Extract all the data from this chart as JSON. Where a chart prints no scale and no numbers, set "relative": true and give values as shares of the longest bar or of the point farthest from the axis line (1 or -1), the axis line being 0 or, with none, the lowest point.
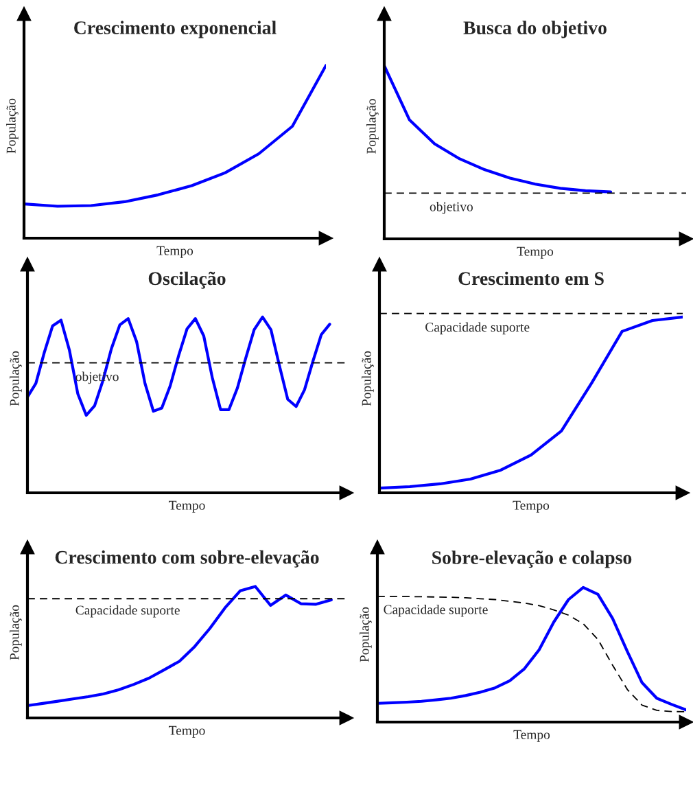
{
  "chart_data": [
    {
      "type": "line",
      "title": "Crescimento exponencial",
      "xlabel": "Tempo",
      "ylabel": "População",
      "relative": true,
      "categories": [
        null,
        null,
        null,
        null,
        null,
        null,
        null,
        null,
        null,
        null
      ],
      "series": [
        {
          "color": "#0000ff",
          "values": [
            0.198,
            0.185,
            0.189,
            0.211,
            0.251,
            0.304,
            0.379,
            0.489,
            0.648,
            1
          ]
        }
      ]
    },
    {
      "type": "line",
      "title": "Busca do objetivo",
      "xlabel": "Tempo",
      "ylabel": "População",
      "relative": true,
      "categories": [
        null,
        null,
        null,
        null,
        null,
        null,
        null,
        null,
        null,
        null,
        null,
        null,
        null
      ],
      "series": [
        {
          "color": "#0000ff",
          "values": [
            1,
            0.688,
            0.549,
            0.462,
            0.399,
            0.351,
            0.316,
            0.292,
            0.278,
            0.271,
            null,
            null,
            null
          ]
        }
      ],
      "ref_lines": [
        {
          "axis": "y",
          "value": 0.264,
          "label": "objetivo",
          "color": "#000000",
          "line_style": "dashed"
        }
      ]
    },
    {
      "type": "line",
      "title": "Oscilação",
      "xlabel": "Tempo",
      "ylabel": "População",
      "relative": true,
      "categories": [
        null,
        null,
        null,
        null,
        null,
        null,
        null,
        null,
        null,
        null,
        null,
        null,
        null,
        null,
        null,
        null,
        null,
        null,
        null,
        null,
        null,
        null,
        null,
        null,
        null,
        null,
        null,
        null,
        null,
        null,
        null,
        null,
        null,
        null,
        null,
        null,
        null,
        null,
        null
      ],
      "series": [
        {
          "color": "#0000ff",
          "values": [
            0.545,
            0.622,
            0.797,
            0.95,
            0.982,
            0.811,
            0.563,
            0.441,
            0.495,
            0.64,
            0.82,
            0.955,
            0.991,
            0.86,
            0.622,
            0.464,
            0.482,
            0.608,
            0.779,
            0.932,
            0.991,
            0.892,
            0.658,
            0.473,
            0.473,
            0.595,
            0.766,
            0.928,
            1,
            0.928,
            0.725,
            0.532,
            0.491,
            0.586,
            0.748,
            0.9,
            0.959,
            null,
            null
          ]
        }
      ],
      "ref_lines": [
        {
          "axis": "y",
          "value": 0.739,
          "label": "objetivo",
          "color": "#000000",
          "line_style": "dashed"
        }
      ]
    },
    {
      "type": "line",
      "title": "Crescimento em S",
      "xlabel": "Tempo",
      "ylabel": "População",
      "relative": true,
      "categories": [
        null,
        null,
        null,
        null,
        null,
        null,
        null,
        null,
        null,
        null,
        null
      ],
      "series": [
        {
          "color": "#0000ff",
          "values": [
            0.027,
            0.035,
            0.051,
            0.078,
            0.129,
            0.215,
            0.352,
            0.625,
            0.918,
            0.98,
            1
          ]
        }
      ],
      "ref_lines": [
        {
          "axis": "y",
          "value": 1.02,
          "label": "Capacidade suporte",
          "color": "#000000",
          "line_style": "dashed"
        }
      ]
    },
    {
      "type": "line",
      "title": "Crescimento com sobre-elevação",
      "xlabel": "Tempo",
      "ylabel": "População",
      "relative": true,
      "categories": [
        null,
        null,
        null,
        null,
        null,
        null,
        null,
        null,
        null,
        null,
        null,
        null,
        null,
        null,
        null,
        null,
        null,
        null,
        null,
        null,
        null,
        null
      ],
      "series": [
        {
          "color": "#0000ff",
          "values": [
            0.094,
            0.11,
            0.127,
            0.145,
            0.162,
            0.183,
            0.214,
            0.255,
            0.303,
            0.366,
            0.431,
            0.542,
            0.68,
            0.837,
            0.967,
            1,
            0.856,
            0.935,
            0.869,
            0.865,
            0.898,
            null
          ]
        }
      ],
      "ref_lines": [
        {
          "axis": "y",
          "value": 0.907,
          "label": "Capacidade suporte",
          "color": "#000000",
          "line_style": "dashed"
        }
      ]
    },
    {
      "type": "line",
      "title": "Sobre-elevação e colapso",
      "xlabel": "Tempo",
      "ylabel": "População",
      "relative": true,
      "categories": [
        null,
        null,
        null,
        null,
        null,
        null,
        null,
        null,
        null,
        null,
        null,
        null,
        null,
        null,
        null,
        null,
        null,
        null,
        null,
        null,
        null,
        null
      ],
      "series": [
        {
          "color": "#0000ff",
          "values": [
            0.139,
            0.143,
            0.148,
            0.154,
            0.165,
            0.177,
            0.197,
            0.222,
            0.254,
            0.306,
            0.396,
            0.537,
            0.743,
            0.91,
            1,
            0.949,
            0.769,
            0.524,
            0.293,
            0.177,
            0.132,
            0.09
          ]
        },
        {
          "name": "Capacidade suporte",
          "color": "#000000",
          "line_style": "dashed",
          "values": [
            0.932,
            0.932,
            0.932,
            0.931,
            0.929,
            0.927,
            0.923,
            0.916,
            0.91,
            0.897,
            0.884,
            0.865,
            0.833,
            0.794,
            0.73,
            0.614,
            0.422,
            0.242,
            0.126,
            0.087,
            0.078,
            0.077
          ]
        }
      ]
    }
  ]
}
